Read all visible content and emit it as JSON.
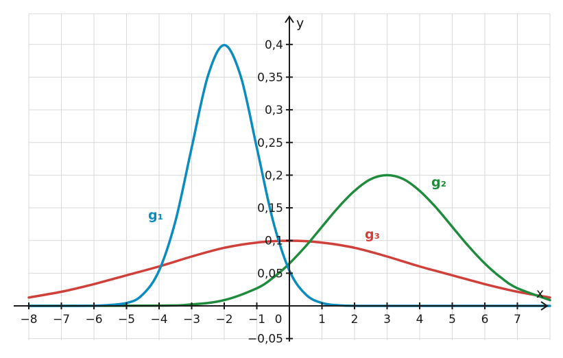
{
  "chart_data": {
    "type": "line",
    "xlabel": "x",
    "ylabel": "y",
    "xlim": [
      -8,
      8
    ],
    "ylim": [
      -0.05,
      0.4
    ],
    "grid": true,
    "x_ticks": [
      {
        "value": -8,
        "label": "−8"
      },
      {
        "value": -7,
        "label": "−7"
      },
      {
        "value": -6,
        "label": "−6"
      },
      {
        "value": -5,
        "label": "−5"
      },
      {
        "value": -4,
        "label": "−4"
      },
      {
        "value": -3,
        "label": "−3"
      },
      {
        "value": -2,
        "label": "−2"
      },
      {
        "value": -1,
        "label": "−1"
      },
      {
        "value": 0,
        "label": "0"
      },
      {
        "value": 1,
        "label": "1"
      },
      {
        "value": 2,
        "label": "2"
      },
      {
        "value": 3,
        "label": "3"
      },
      {
        "value": 4,
        "label": "4"
      },
      {
        "value": 5,
        "label": "5"
      },
      {
        "value": 6,
        "label": "6"
      },
      {
        "value": 7,
        "label": "7"
      }
    ],
    "y_ticks": [
      {
        "value": -0.05,
        "label": "−0,05"
      },
      {
        "value": 0.05,
        "label": "0,05"
      },
      {
        "value": 0.1,
        "label": "0,1"
      },
      {
        "value": 0.15,
        "label": "0,15"
      },
      {
        "value": 0.2,
        "label": "0,2"
      },
      {
        "value": 0.25,
        "label": "0,25"
      },
      {
        "value": 0.3,
        "label": "0,3"
      },
      {
        "value": 0.35,
        "label": "0,35"
      },
      {
        "value": 0.4,
        "label": "0,4"
      }
    ],
    "series": [
      {
        "name": "g₁",
        "color": "#0a8cbf",
        "x": [
          -8,
          -7,
          -6,
          -5,
          -4.5,
          -4,
          -3.5,
          -3,
          -2.5,
          -2,
          -1.5,
          -1,
          -0.5,
          0,
          0.5,
          1,
          1.5,
          2,
          3,
          8
        ],
        "y": [
          0,
          0,
          0.0001,
          0.0044,
          0.0175,
          0.054,
          0.1295,
          0.242,
          0.3521,
          0.3989,
          0.3521,
          0.242,
          0.1295,
          0.054,
          0.0175,
          0.0044,
          0.0009,
          0.0001,
          0,
          0
        ]
      },
      {
        "name": "g₂",
        "color": "#1e8c3c",
        "x": [
          -8,
          -4,
          -3,
          -2,
          -1,
          -0.5,
          0,
          0.5,
          1,
          1.5,
          2,
          2.5,
          3,
          3.5,
          4,
          4.5,
          5,
          5.5,
          6,
          6.5,
          7,
          8
        ],
        "y": [
          0,
          0.0004,
          0.0022,
          0.0088,
          0.027,
          0.0431,
          0.0648,
          0.0913,
          0.121,
          0.1506,
          0.176,
          0.1939,
          0.2,
          0.1939,
          0.176,
          0.1506,
          0.121,
          0.0913,
          0.0648,
          0.0431,
          0.027,
          0.0088
        ]
      },
      {
        "name": "g₃",
        "color": "#d0403a",
        "x": [
          -8,
          -7,
          -6,
          -5,
          -4,
          -3,
          -2,
          -1,
          0,
          1,
          2,
          3,
          4,
          5,
          6,
          7,
          8
        ],
        "y": [
          0.0128,
          0.0216,
          0.0333,
          0.0468,
          0.0603,
          0.0755,
          0.0889,
          0.0969,
          0.0997,
          0.0969,
          0.0889,
          0.0755,
          0.0603,
          0.0468,
          0.0333,
          0.0216,
          0.0128
        ]
      }
    ]
  }
}
